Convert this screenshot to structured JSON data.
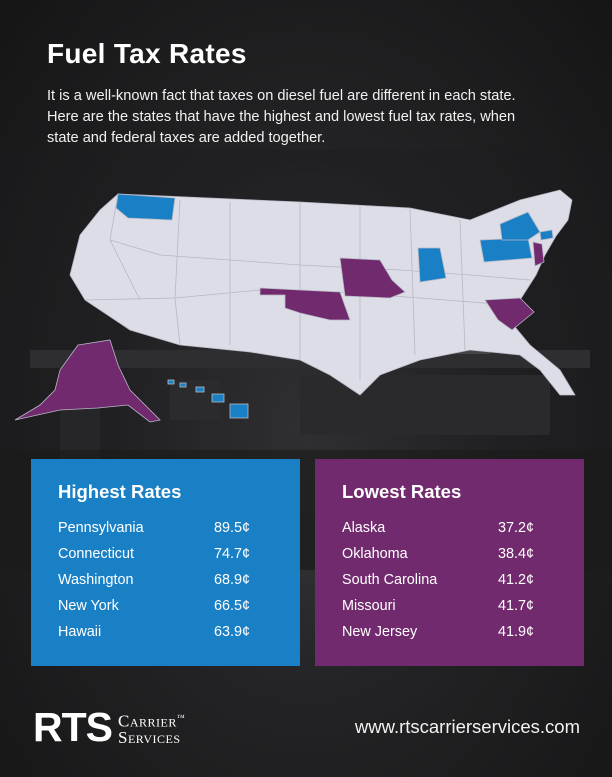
{
  "title": "Fuel Tax Rates",
  "intro": "It is a well-known fact that taxes on diesel fuel are different in each state. Here are the states that have the highest and lowest fuel tax rates, when state and federal taxes are added together.",
  "colors": {
    "highest": "#1a80c6",
    "lowest": "#722a6e",
    "map_default": "#dcdde6"
  },
  "highest": {
    "title": "Highest Rates",
    "rows": [
      {
        "state": "Pennsylvania",
        "rate": "89.5¢"
      },
      {
        "state": "Connecticut",
        "rate": "74.7¢"
      },
      {
        "state": "Washington",
        "rate": "68.9¢"
      },
      {
        "state": "New York",
        "rate": "66.5¢"
      },
      {
        "state": "Hawaii",
        "rate": "63.9¢"
      }
    ]
  },
  "lowest": {
    "title": "Lowest Rates",
    "rows": [
      {
        "state": "Alaska",
        "rate": "37.2¢"
      },
      {
        "state": "Oklahoma",
        "rate": "38.4¢"
      },
      {
        "state": "South Carolina",
        "rate": "41.2¢"
      },
      {
        "state": "Missouri",
        "rate": "41.7¢"
      },
      {
        "state": "New Jersey",
        "rate": "41.9¢"
      }
    ]
  },
  "footer": {
    "logo_main": "RTS",
    "logo_line1": "Carrier",
    "logo_tm": "™",
    "logo_line2": "Services",
    "url": "www.rtscarrierservices.com"
  }
}
